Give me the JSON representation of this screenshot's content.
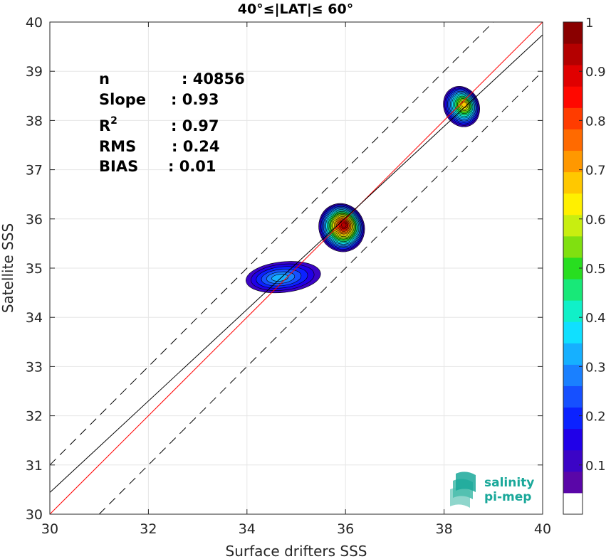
{
  "chart_data": {
    "type": "scatter",
    "title": "40°≤|LAT|≤ 60°",
    "xlabel": "Surface drifters SSS",
    "ylabel": "Satellite SSS",
    "xlim": [
      30,
      40
    ],
    "ylim": [
      30,
      40
    ],
    "xticks": [
      "30",
      "32",
      "34",
      "36",
      "38",
      "40"
    ],
    "yticks": [
      "30",
      "31",
      "32",
      "33",
      "34",
      "35",
      "36",
      "37",
      "38",
      "39",
      "40"
    ],
    "grid": true,
    "stats": [
      {
        "label": "n",
        "value": ": 40856"
      },
      {
        "label": "Slope",
        "value": ": 0.93"
      },
      {
        "label": "R",
        "sup": "2",
        "value": ": 0.97"
      },
      {
        "label": "RMS",
        "value": ": 0.24"
      },
      {
        "label": "BIAS",
        "value": ": 0.01"
      }
    ],
    "lines": [
      {
        "kind": "one-to-one",
        "color": "#ff0000",
        "intercept": 0,
        "slope": 1
      },
      {
        "kind": "regression",
        "color": "#000000",
        "intercept": 2.54,
        "slope": 0.93
      },
      {
        "kind": "upper-bound",
        "color": "#000000",
        "dash": true,
        "intercept": 1,
        "slope": 1
      },
      {
        "kind": "lower-bound",
        "color": "#000000",
        "dash": true,
        "intercept": -1,
        "slope": 1
      }
    ],
    "density_clusters": [
      {
        "cx": 38.35,
        "cy": 38.28,
        "rx": 0.38,
        "ry": 0.45,
        "peak": 0.65,
        "peak_x": 38.42,
        "peak_y": 38.32
      },
      {
        "cx": 35.92,
        "cy": 35.82,
        "rx": 0.48,
        "ry": 0.52,
        "peak": 0.9,
        "peak_x": 35.97,
        "peak_y": 35.88
      },
      {
        "cx": 34.75,
        "cy": 34.82,
        "rx": 0.88,
        "ry": 0.36,
        "peak": 0.3,
        "peak_x": 34.65,
        "peak_y": 34.8
      }
    ],
    "colorbar": {
      "ticks": [
        "0.1",
        "0.2",
        "0.3",
        "0.4",
        "0.5",
        "0.6",
        "0.7",
        "0.8",
        "0.9",
        "1"
      ],
      "colors": [
        "#ffffff",
        "#5a06a8",
        "#3b04c6",
        "#2000e8",
        "#0b22ff",
        "#1650ff",
        "#1a80ff",
        "#16b0ff",
        "#10e0ff",
        "#10f0c8",
        "#18e878",
        "#28de20",
        "#80e010",
        "#c8ee10",
        "#fff000",
        "#ffc800",
        "#ff9800",
        "#ff6a00",
        "#ff3c00",
        "#ff0800",
        "#e00000",
        "#b40000",
        "#8a0000"
      ]
    },
    "logo": {
      "line1": "salinity",
      "line2": "pi-mep",
      "color": "#1aa89a"
    }
  }
}
